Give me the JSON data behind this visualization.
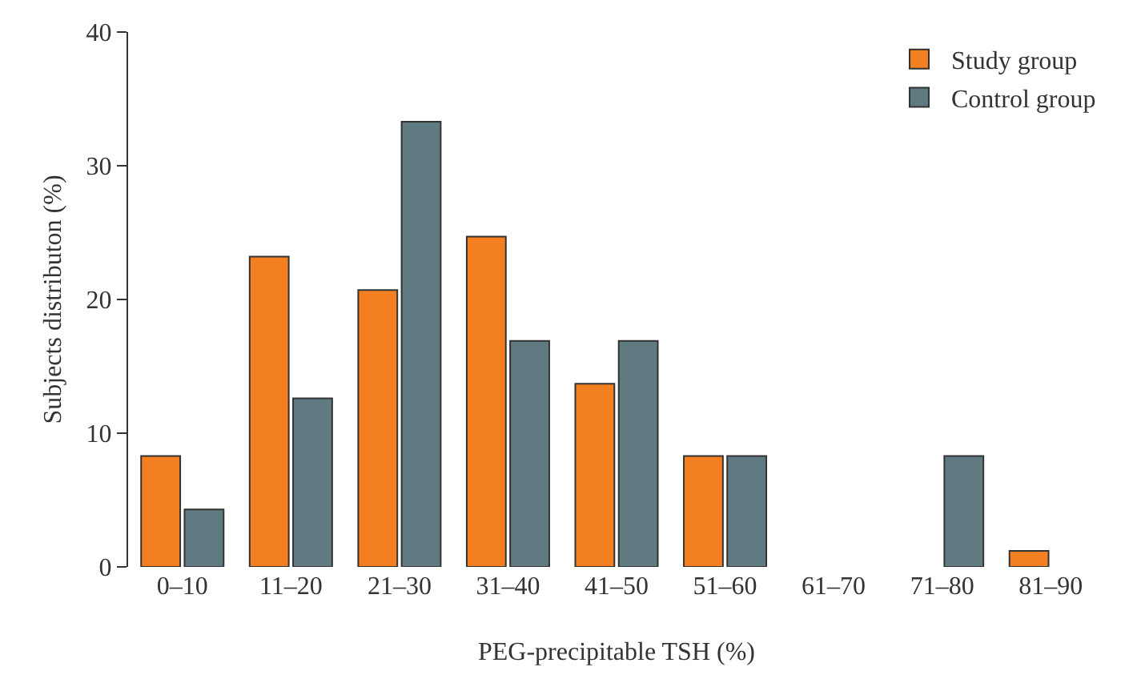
{
  "chart_data": {
    "type": "bar",
    "xlabel": "PEG-precipitable TSH (%)",
    "ylabel": "Subjects distributon (%)",
    "categories": [
      "0–10",
      "11–20",
      "21–30",
      "31–40",
      "41–50",
      "51–60",
      "61–70",
      "71–80",
      "81–90"
    ],
    "series": [
      {
        "name": "Study group",
        "color": "#f47f20",
        "values": [
          8.3,
          23.2,
          20.7,
          24.7,
          13.7,
          8.3,
          0,
          0,
          1.2
        ]
      },
      {
        "name": "Control group",
        "color": "#5f7a80",
        "values": [
          4.3,
          12.6,
          33.3,
          16.9,
          16.9,
          8.3,
          0,
          8.3,
          0
        ]
      }
    ],
    "ylim": [
      0,
      40
    ],
    "yticks": [
      0,
      10,
      20,
      30,
      40
    ],
    "grid": false,
    "legend": "top right"
  }
}
